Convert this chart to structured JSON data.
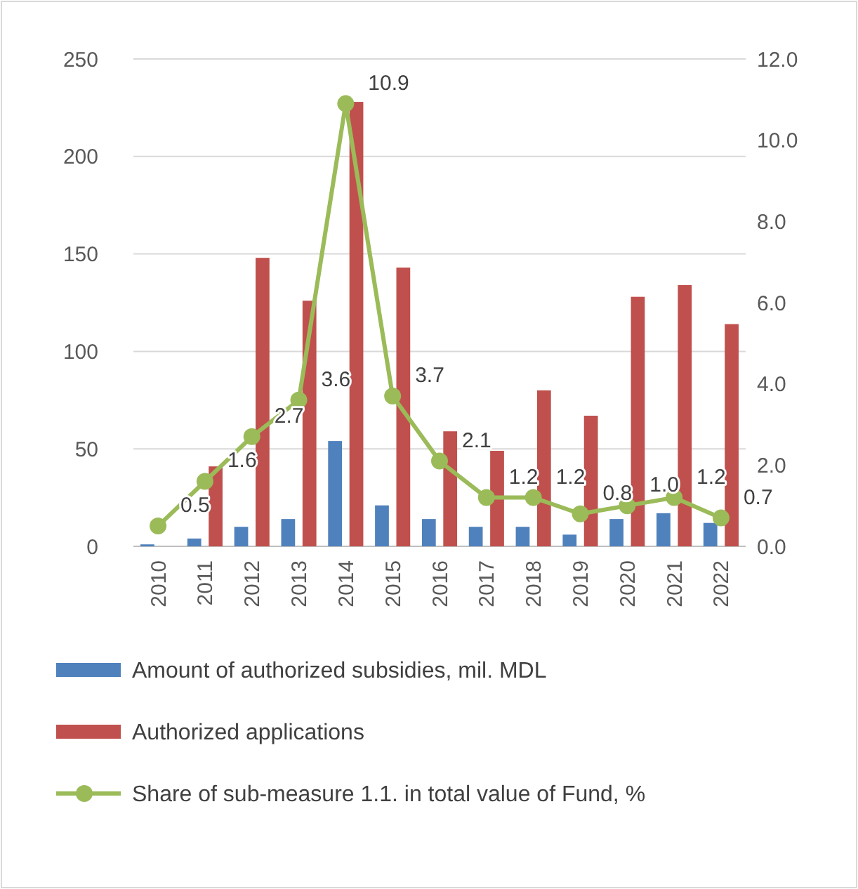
{
  "chart_data": {
    "type": "bar",
    "categories": [
      "2010",
      "2011",
      "2012",
      "2013",
      "2014",
      "2015",
      "2016",
      "2017",
      "2018",
      "2019",
      "2020",
      "2021",
      "2022"
    ],
    "series": [
      {
        "name": "Amount of authorized subsidies, mil. MDL",
        "color": "#4f81bd",
        "values": [
          1,
          4,
          10,
          14,
          54,
          21,
          14,
          10,
          10,
          6,
          14,
          17,
          12
        ]
      },
      {
        "name": "Authorized applications",
        "color": "#c0504d",
        "values": [
          0,
          41,
          148,
          126,
          228,
          143,
          59,
          49,
          80,
          67,
          128,
          134,
          114
        ]
      },
      {
        "name": "Share of sub-measure 1.1. in total value of Fund, %",
        "type": "line",
        "axis": "y2",
        "color": "#9bbb59",
        "marker": "circle",
        "values": [
          0.5,
          1.6,
          2.7,
          3.6,
          10.9,
          3.7,
          2.1,
          1.2,
          1.2,
          0.8,
          1.0,
          1.2,
          0.7
        ],
        "value_labels": [
          "0.5",
          "1.6",
          "2.7",
          "3.6",
          "10.9",
          "3.7",
          "2.1",
          "1.2",
          "1.2",
          "0.8",
          "1.0",
          "1.2",
          "0.7"
        ]
      }
    ],
    "ylim": [
      0,
      250
    ],
    "yticks": [
      0,
      50,
      100,
      150,
      200,
      250
    ],
    "y2lim": [
      0,
      12
    ],
    "y2ticks": [
      {
        "value": 0,
        "label": "0.0"
      },
      {
        "value": 2,
        "label": "2.0"
      },
      {
        "value": 4,
        "label": "4.0"
      },
      {
        "value": 6,
        "label": "6.0"
      },
      {
        "value": 8,
        "label": "8.0"
      },
      {
        "value": 10,
        "label": "10.0"
      },
      {
        "value": 12,
        "label": "12.0"
      }
    ],
    "grid": "y",
    "legend": "bottom"
  }
}
